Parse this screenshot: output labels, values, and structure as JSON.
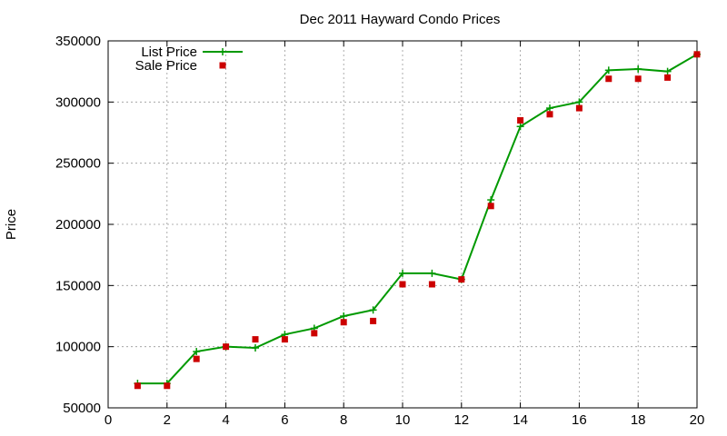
{
  "chart_data": {
    "type": "line",
    "title": "Dec 2011 Hayward Condo Prices",
    "xlabel": "",
    "ylabel": "Price",
    "xlim": [
      0,
      20
    ],
    "ylim": [
      50000,
      350000
    ],
    "xticks": [
      0,
      2,
      4,
      6,
      8,
      10,
      12,
      14,
      16,
      18,
      20
    ],
    "yticks": [
      50000,
      100000,
      150000,
      200000,
      250000,
      300000,
      350000
    ],
    "grid": true,
    "legend_position": "top-left",
    "series": [
      {
        "name": "List Price",
        "style": "line-with-plus-markers",
        "color": "#009900",
        "x": [
          1,
          2,
          3,
          4,
          5,
          6,
          7,
          8,
          9,
          10,
          11,
          12,
          13,
          14,
          15,
          16,
          17,
          18,
          19,
          20
        ],
        "y": [
          70000,
          70000,
          96000,
          100000,
          99000,
          110000,
          115000,
          125000,
          130000,
          160000,
          160000,
          155000,
          220000,
          280000,
          295000,
          300000,
          326000,
          327000,
          325000,
          339000
        ]
      },
      {
        "name": "Sale Price",
        "style": "square-markers",
        "color": "#cc0000",
        "x": [
          1,
          2,
          3,
          4,
          5,
          6,
          7,
          8,
          9,
          10,
          11,
          12,
          13,
          14,
          15,
          16,
          17,
          18,
          19,
          20
        ],
        "y": [
          68000,
          68000,
          90000,
          100000,
          106000,
          106000,
          111000,
          120000,
          121000,
          151000,
          151000,
          155000,
          215000,
          285000,
          290000,
          295000,
          319000,
          319000,
          320000,
          339000
        ]
      }
    ]
  }
}
